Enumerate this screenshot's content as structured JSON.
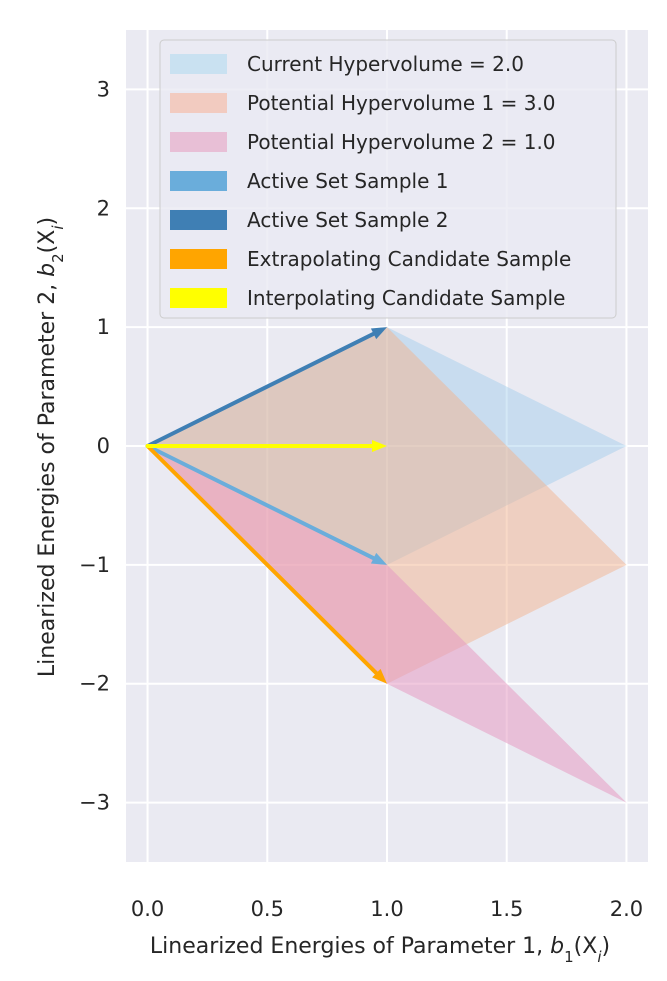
{
  "chart_data": {
    "type": "area",
    "xlabel": "Linearized Energies of Parameter 1, ",
    "xlabel_math": {
      "base": "b",
      "sub": "1",
      "arg": "(X",
      "arg_sub": "i",
      "close": ")"
    },
    "ylabel": "Linearized Energies of Parameter 2, ",
    "ylabel_math": {
      "base": "b",
      "sub": "2",
      "arg": "(X",
      "arg_sub": "i",
      "close": ")"
    },
    "xlim": [
      -0.09,
      2.09
    ],
    "ylim": [
      -3.5,
      3.5
    ],
    "xticks": [
      0.0,
      0.5,
      1.0,
      1.5,
      2.0
    ],
    "xtick_labels": [
      "0.0",
      "0.5",
      "1.0",
      "1.5",
      "2.0"
    ],
    "yticks": [
      3,
      2,
      1,
      0,
      -1,
      -2,
      -3
    ],
    "ytick_labels": [
      "3",
      "2",
      "1",
      "0",
      "−1",
      "−2",
      "−3"
    ],
    "grid": true,
    "legend_position": "top-center",
    "polygons": [
      {
        "name": "Current Hypervolume = 2.0",
        "color": "#9fcbea",
        "opacity": 0.45,
        "points": [
          [
            0,
            0
          ],
          [
            1,
            1
          ],
          [
            2,
            0
          ],
          [
            1,
            -1
          ]
        ]
      },
      {
        "name": "Potential Hypervolume 1 = 3.0",
        "color": "#f2b38f",
        "opacity": 0.5,
        "points": [
          [
            0,
            0
          ],
          [
            1,
            1
          ],
          [
            2,
            -1
          ],
          [
            1,
            -2
          ]
        ]
      },
      {
        "name": "Potential Hypervolume 2 = 1.0",
        "color": "#e59ac2",
        "opacity": 0.55,
        "points": [
          [
            0,
            0
          ],
          [
            1,
            -1
          ],
          [
            2,
            -3
          ],
          [
            1,
            -2
          ]
        ]
      }
    ],
    "arrows": [
      {
        "name": "Active Set Sample 1",
        "color": "#6aaddb",
        "from": [
          0,
          0
        ],
        "to": [
          1,
          -1
        ]
      },
      {
        "name": "Active Set Sample 2",
        "color": "#3f7fb4",
        "from": [
          0,
          0
        ],
        "to": [
          1,
          1
        ]
      },
      {
        "name": "Extrapolating Candidate Sample",
        "color": "#ffa500",
        "from": [
          0,
          0
        ],
        "to": [
          1,
          -2
        ]
      },
      {
        "name": "Interpolating Candidate Sample",
        "color": "#ffff00",
        "from": [
          0,
          0
        ],
        "to": [
          1,
          0
        ]
      }
    ],
    "legend": [
      {
        "label": "Current Hypervolume = 2.0",
        "color": "#c9e1f1"
      },
      {
        "label": "Potential Hypervolume 1 = 3.0",
        "color": "#f2cbc0"
      },
      {
        "label": "Potential Hypervolume 2 = 1.0",
        "color": "#e8bfd6"
      },
      {
        "label": "Active Set Sample 1",
        "color": "#6aaddb"
      },
      {
        "label": "Active Set Sample 2",
        "color": "#3f7fb4"
      },
      {
        "label": "Extrapolating Candidate Sample",
        "color": "#ffa500"
      },
      {
        "label": "Interpolating Candidate Sample",
        "color": "#ffff00"
      }
    ]
  }
}
